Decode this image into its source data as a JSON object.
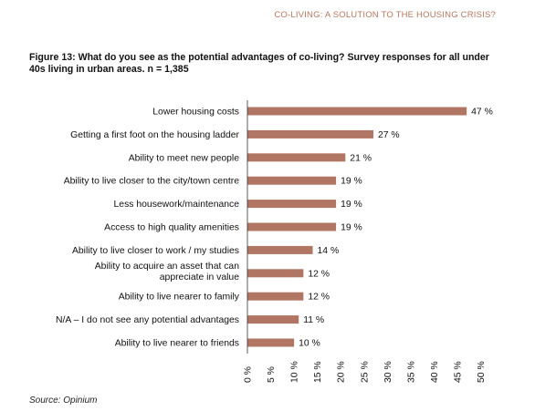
{
  "header": {
    "text": "CO-LIVING: A SOLUTION TO THE HOUSING CRISIS?"
  },
  "figure": {
    "title": "Figure 13: What do you see as the potential advantages of co-living? Survey responses for all under 40s living in urban areas. n = 1,385"
  },
  "source": "Source: Opinium",
  "colors": {
    "bar": "#b07663",
    "header": "#b5785f",
    "axis": "#333333"
  },
  "chart_data": {
    "type": "bar",
    "orientation": "horizontal",
    "title": "",
    "xlabel": "",
    "ylabel": "",
    "xlim": [
      0,
      50
    ],
    "grid": false,
    "legend": "none",
    "ticks": [
      0,
      5,
      10,
      15,
      20,
      25,
      30,
      35,
      40,
      45,
      50
    ],
    "tick_labels": [
      "0 %",
      "5 %",
      "10 %",
      "15 %",
      "20 %",
      "25 %",
      "30 %",
      "35 %",
      "40 %",
      "45 %",
      "50 %"
    ],
    "categories": [
      "Lower housing costs",
      "Getting a first foot on the housing ladder",
      "Ability to meet new people",
      "Ability to live closer to the city/town centre",
      "Less housework/maintenance",
      "Access to high quality amenities",
      "Ability to live closer to work / my studies",
      "Ability to acquire an asset that can appreciate in value",
      "Ability to live nearer to family",
      "N/A – I do not see any potential advantages",
      "Ability to live nearer to friends"
    ],
    "values": [
      47,
      27,
      21,
      19,
      19,
      19,
      14,
      12,
      12,
      11,
      10
    ],
    "value_labels": [
      "47 %",
      "27 %",
      "21 %",
      "19 %",
      "19 %",
      "19 %",
      "14 %",
      "12 %",
      "12 %",
      "11 %",
      "10 %"
    ]
  }
}
